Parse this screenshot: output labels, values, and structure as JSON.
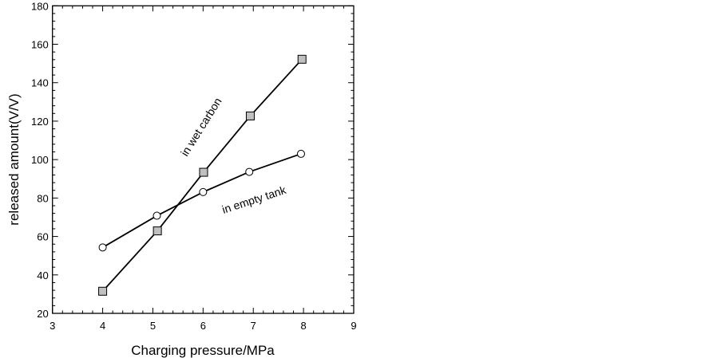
{
  "chart_data": {
    "type": "line",
    "title": "",
    "xlabel": "Charging pressure/MPa",
    "ylabel": "released amount(V/V)",
    "xlim": [
      3,
      9
    ],
    "ylim": [
      20,
      180
    ],
    "xticks": [
      "3",
      "4",
      "5",
      "6",
      "7",
      "8",
      "9"
    ],
    "yticks": [
      "20",
      "40",
      "60",
      "80",
      "100",
      "120",
      "140",
      "160",
      "180"
    ],
    "grid": false,
    "series": [
      {
        "name": "in wet carbon",
        "marker": "square",
        "marker_color": "#c0c0c0",
        "x": [
          4.0,
          5.09,
          6.01,
          6.94,
          7.97
        ],
        "y": [
          31.5,
          62.9,
          93.4,
          122.7,
          152.2
        ]
      },
      {
        "name": "in empty tank",
        "marker": "circle",
        "marker_color": "#ffffff",
        "x": [
          4.0,
          5.08,
          6.0,
          6.92,
          7.95
        ],
        "y": [
          54.3,
          70.8,
          83.1,
          93.6,
          103.0
        ]
      }
    ],
    "annotations": [
      "in wet carbon",
      "in empty tank"
    ]
  }
}
